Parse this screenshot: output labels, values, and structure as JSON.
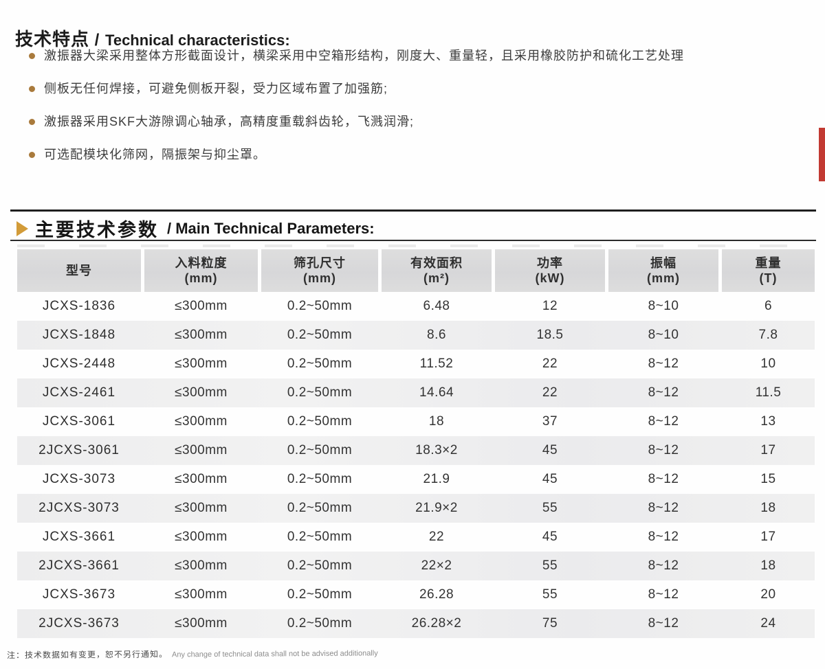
{
  "section1": {
    "title_zh": "技术特点",
    "title_sep": " / ",
    "title_en": "Technical characteristics:",
    "bullets": [
      "激振器大梁采用整体方形截面设计，横梁采用中空箱形结构，刚度大、重量轻，且采用橡胶防护和硫化工艺处理",
      "侧板无任何焊接，可避免侧板开裂，受力区域布置了加强筋;",
      "激振器采用SKF大游隙调心轴承，高精度重载斜齿轮，飞溅润滑;",
      "可选配模块化筛网，隔振架与抑尘罩。"
    ],
    "bullet_color": "#a97a3c"
  },
  "section2": {
    "title_zh": "主要技术参数",
    "title_en": "/ Main Technical Parameters:",
    "arrow_icon_color": "#d29b38"
  },
  "table": {
    "columns": [
      {
        "name": "型号",
        "unit": ""
      },
      {
        "name": "入料粒度",
        "unit": "(mm)"
      },
      {
        "name": "筛孔尺寸",
        "unit": "(mm)"
      },
      {
        "name": "有效面积",
        "unit": "(m²)"
      },
      {
        "name": "功率",
        "unit": "(kW)"
      },
      {
        "name": "振幅",
        "unit": "(mm)"
      },
      {
        "name": "重量",
        "unit": "(T)"
      }
    ],
    "rows": [
      [
        "JCXS-1836",
        "≤300mm",
        "0.2~50mm",
        "6.48",
        "12",
        "8~10",
        "6"
      ],
      [
        "JCXS-1848",
        "≤300mm",
        "0.2~50mm",
        "8.6",
        "18.5",
        "8~10",
        "7.8"
      ],
      [
        "JCXS-2448",
        "≤300mm",
        "0.2~50mm",
        "11.52",
        "22",
        "8~12",
        "10"
      ],
      [
        "JCXS-2461",
        "≤300mm",
        "0.2~50mm",
        "14.64",
        "22",
        "8~12",
        "11.5"
      ],
      [
        "JCXS-3061",
        "≤300mm",
        "0.2~50mm",
        "18",
        "37",
        "8~12",
        "13"
      ],
      [
        "2JCXS-3061",
        "≤300mm",
        "0.2~50mm",
        "18.3×2",
        "45",
        "8~12",
        "17"
      ],
      [
        "JCXS-3073",
        "≤300mm",
        "0.2~50mm",
        "21.9",
        "45",
        "8~12",
        "15"
      ],
      [
        "2JCXS-3073",
        "≤300mm",
        "0.2~50mm",
        "21.9×2",
        "55",
        "8~12",
        "18"
      ],
      [
        "JCXS-3661",
        "≤300mm",
        "0.2~50mm",
        "22",
        "45",
        "8~12",
        "17"
      ],
      [
        "2JCXS-3661",
        "≤300mm",
        "0.2~50mm",
        "22×2",
        "55",
        "8~12",
        "18"
      ],
      [
        "JCXS-3673",
        "≤300mm",
        "0.2~50mm",
        "26.28",
        "55",
        "8~12",
        "20"
      ],
      [
        "2JCXS-3673",
        "≤300mm",
        "0.2~50mm",
        "26.28×2",
        "75",
        "8~12",
        "24"
      ]
    ],
    "header_bg": "#dadada",
    "band_bg": "#efefef"
  },
  "footnote": {
    "zh": "注：技术数据如有变更，恕不另行通知。",
    "en": "Any change of technical data shall not be advised additionally"
  },
  "accents": {
    "red_tab": "#c23a32"
  }
}
